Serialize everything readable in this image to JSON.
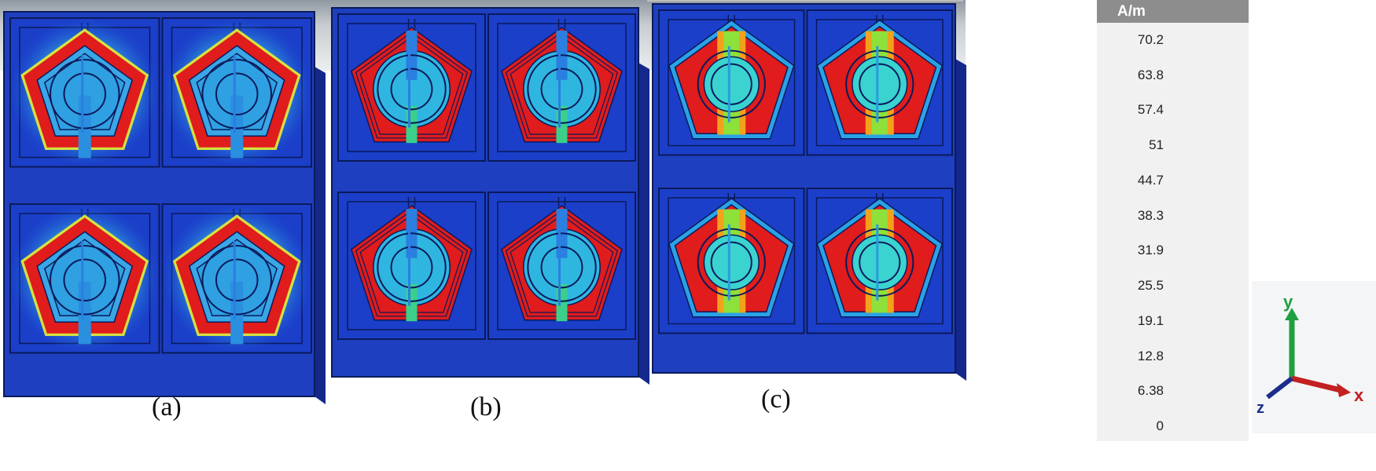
{
  "panels": [
    {
      "label": "(a)",
      "mode": "a"
    },
    {
      "label": "(b)",
      "mode": "b"
    },
    {
      "label": "(c)",
      "mode": "c"
    }
  ],
  "legend": {
    "unit": "A/m",
    "ticks": [
      "70.2",
      "63.8",
      "57.4",
      "51",
      "44.7",
      "38.3",
      "31.9",
      "25.5",
      "19.1",
      "12.8",
      "6.38",
      "0"
    ],
    "colors": [
      "#1a1aa8",
      "#1e4fe6",
      "#1f8ff2",
      "#22c8f0",
      "#2ee0c8",
      "#33d66b",
      "#5fd42a",
      "#c3e01d",
      "#f5d21a",
      "#f59a1a",
      "#f0501e",
      "#e01c1c"
    ]
  },
  "axes": {
    "x_label": "x",
    "y_label": "y",
    "z_label": "z"
  }
}
